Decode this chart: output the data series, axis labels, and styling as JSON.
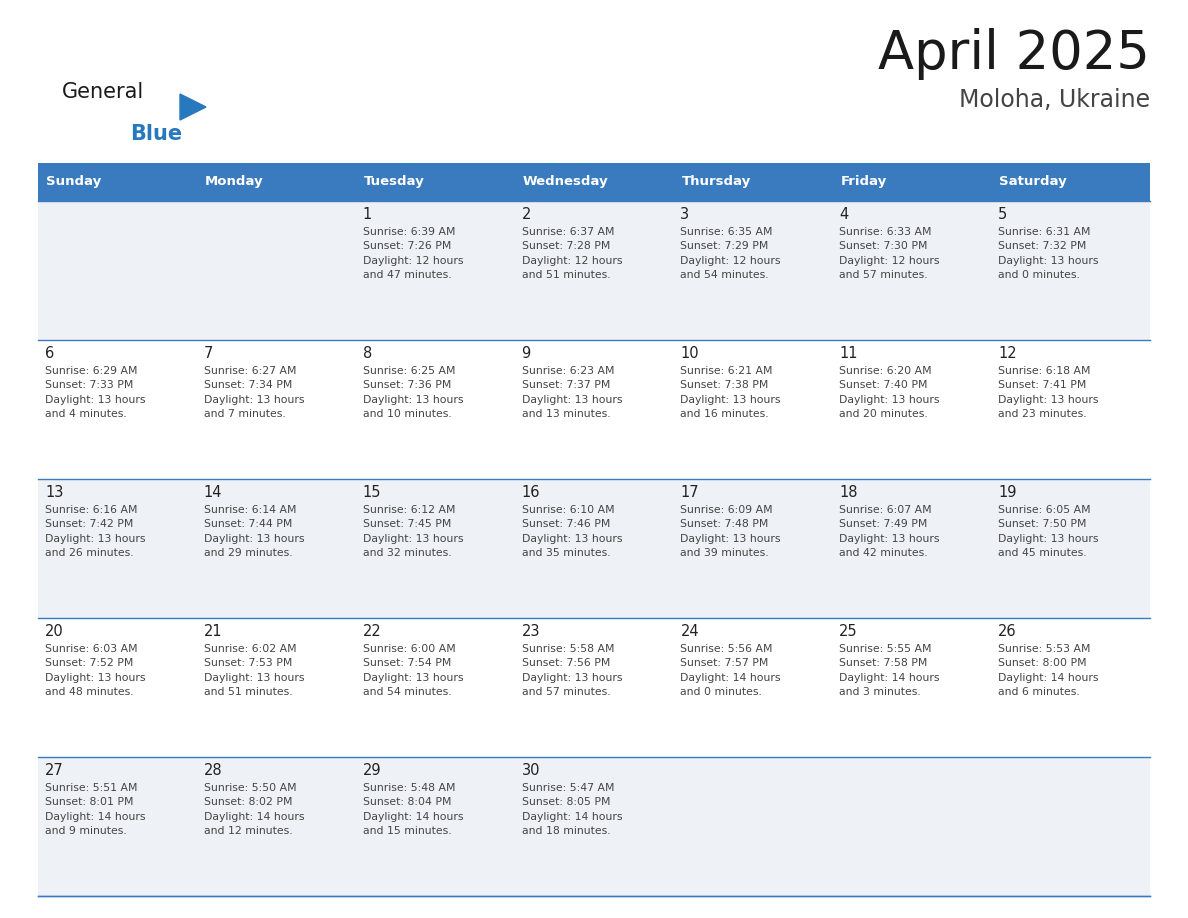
{
  "title": "April 2025",
  "subtitle": "Moloha, Ukraine",
  "days_of_week": [
    "Sunday",
    "Monday",
    "Tuesday",
    "Wednesday",
    "Thursday",
    "Friday",
    "Saturday"
  ],
  "header_bg": "#3a7bbf",
  "header_text": "#ffffff",
  "row_bg_odd": "#eef2f7",
  "row_bg_even": "#ffffff",
  "cell_border": "#3a7bbf",
  "day_number_color": "#222222",
  "text_color": "#444444",
  "title_color": "#1a1a1a",
  "subtitle_color": "#444444",
  "logo_general_color": "#1a1a1a",
  "logo_blue_color": "#2878be",
  "weeks": [
    [
      {
        "day": null,
        "text": ""
      },
      {
        "day": null,
        "text": ""
      },
      {
        "day": 1,
        "text": "Sunrise: 6:39 AM\nSunset: 7:26 PM\nDaylight: 12 hours\nand 47 minutes."
      },
      {
        "day": 2,
        "text": "Sunrise: 6:37 AM\nSunset: 7:28 PM\nDaylight: 12 hours\nand 51 minutes."
      },
      {
        "day": 3,
        "text": "Sunrise: 6:35 AM\nSunset: 7:29 PM\nDaylight: 12 hours\nand 54 minutes."
      },
      {
        "day": 4,
        "text": "Sunrise: 6:33 AM\nSunset: 7:30 PM\nDaylight: 12 hours\nand 57 minutes."
      },
      {
        "day": 5,
        "text": "Sunrise: 6:31 AM\nSunset: 7:32 PM\nDaylight: 13 hours\nand 0 minutes."
      }
    ],
    [
      {
        "day": 6,
        "text": "Sunrise: 6:29 AM\nSunset: 7:33 PM\nDaylight: 13 hours\nand 4 minutes."
      },
      {
        "day": 7,
        "text": "Sunrise: 6:27 AM\nSunset: 7:34 PM\nDaylight: 13 hours\nand 7 minutes."
      },
      {
        "day": 8,
        "text": "Sunrise: 6:25 AM\nSunset: 7:36 PM\nDaylight: 13 hours\nand 10 minutes."
      },
      {
        "day": 9,
        "text": "Sunrise: 6:23 AM\nSunset: 7:37 PM\nDaylight: 13 hours\nand 13 minutes."
      },
      {
        "day": 10,
        "text": "Sunrise: 6:21 AM\nSunset: 7:38 PM\nDaylight: 13 hours\nand 16 minutes."
      },
      {
        "day": 11,
        "text": "Sunrise: 6:20 AM\nSunset: 7:40 PM\nDaylight: 13 hours\nand 20 minutes."
      },
      {
        "day": 12,
        "text": "Sunrise: 6:18 AM\nSunset: 7:41 PM\nDaylight: 13 hours\nand 23 minutes."
      }
    ],
    [
      {
        "day": 13,
        "text": "Sunrise: 6:16 AM\nSunset: 7:42 PM\nDaylight: 13 hours\nand 26 minutes."
      },
      {
        "day": 14,
        "text": "Sunrise: 6:14 AM\nSunset: 7:44 PM\nDaylight: 13 hours\nand 29 minutes."
      },
      {
        "day": 15,
        "text": "Sunrise: 6:12 AM\nSunset: 7:45 PM\nDaylight: 13 hours\nand 32 minutes."
      },
      {
        "day": 16,
        "text": "Sunrise: 6:10 AM\nSunset: 7:46 PM\nDaylight: 13 hours\nand 35 minutes."
      },
      {
        "day": 17,
        "text": "Sunrise: 6:09 AM\nSunset: 7:48 PM\nDaylight: 13 hours\nand 39 minutes."
      },
      {
        "day": 18,
        "text": "Sunrise: 6:07 AM\nSunset: 7:49 PM\nDaylight: 13 hours\nand 42 minutes."
      },
      {
        "day": 19,
        "text": "Sunrise: 6:05 AM\nSunset: 7:50 PM\nDaylight: 13 hours\nand 45 minutes."
      }
    ],
    [
      {
        "day": 20,
        "text": "Sunrise: 6:03 AM\nSunset: 7:52 PM\nDaylight: 13 hours\nand 48 minutes."
      },
      {
        "day": 21,
        "text": "Sunrise: 6:02 AM\nSunset: 7:53 PM\nDaylight: 13 hours\nand 51 minutes."
      },
      {
        "day": 22,
        "text": "Sunrise: 6:00 AM\nSunset: 7:54 PM\nDaylight: 13 hours\nand 54 minutes."
      },
      {
        "day": 23,
        "text": "Sunrise: 5:58 AM\nSunset: 7:56 PM\nDaylight: 13 hours\nand 57 minutes."
      },
      {
        "day": 24,
        "text": "Sunrise: 5:56 AM\nSunset: 7:57 PM\nDaylight: 14 hours\nand 0 minutes."
      },
      {
        "day": 25,
        "text": "Sunrise: 5:55 AM\nSunset: 7:58 PM\nDaylight: 14 hours\nand 3 minutes."
      },
      {
        "day": 26,
        "text": "Sunrise: 5:53 AM\nSunset: 8:00 PM\nDaylight: 14 hours\nand 6 minutes."
      }
    ],
    [
      {
        "day": 27,
        "text": "Sunrise: 5:51 AM\nSunset: 8:01 PM\nDaylight: 14 hours\nand 9 minutes."
      },
      {
        "day": 28,
        "text": "Sunrise: 5:50 AM\nSunset: 8:02 PM\nDaylight: 14 hours\nand 12 minutes."
      },
      {
        "day": 29,
        "text": "Sunrise: 5:48 AM\nSunset: 8:04 PM\nDaylight: 14 hours\nand 15 minutes."
      },
      {
        "day": 30,
        "text": "Sunrise: 5:47 AM\nSunset: 8:05 PM\nDaylight: 14 hours\nand 18 minutes."
      },
      {
        "day": null,
        "text": ""
      },
      {
        "day": null,
        "text": ""
      },
      {
        "day": null,
        "text": ""
      }
    ]
  ]
}
